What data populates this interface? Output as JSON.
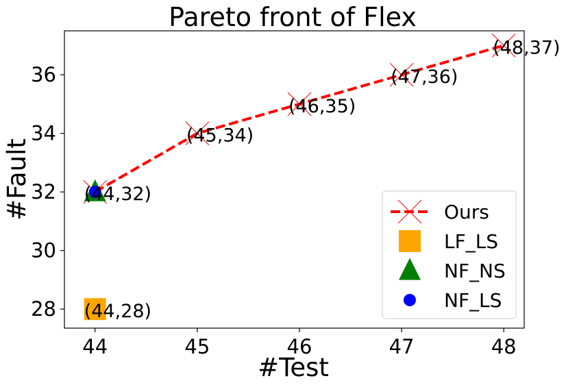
{
  "chart_data": {
    "type": "scatter",
    "title": "Pareto front of Flex",
    "xlabel": "#Test",
    "ylabel": "#Fault",
    "xlim": [
      43.7,
      48.2
    ],
    "ylim": [
      27.35,
      37.5
    ],
    "xticks": [
      44,
      45,
      46,
      47,
      48
    ],
    "yticks": [
      28,
      30,
      32,
      34,
      36
    ],
    "grid": false,
    "legend_position": "lower-right",
    "series": [
      {
        "name": "Ours",
        "marker": "x",
        "line": "dashed",
        "color": "#ff0000",
        "x": [
          44,
          45,
          46,
          47,
          48
        ],
        "y": [
          32,
          34,
          35,
          36,
          37
        ]
      },
      {
        "name": "LF_LS",
        "marker": "square",
        "color": "#ffa500",
        "x": [
          44
        ],
        "y": [
          28
        ]
      },
      {
        "name": "NF_NS",
        "marker": "triangle",
        "color": "#008000",
        "x": [
          44
        ],
        "y": [
          32
        ]
      },
      {
        "name": "NF_LS",
        "marker": "circle",
        "color": "#0000ff",
        "x": [
          44
        ],
        "y": [
          32
        ]
      }
    ],
    "annotations": [
      {
        "text": "(44,32)",
        "x": 44,
        "y": 32
      },
      {
        "text": "(45,34)",
        "x": 45,
        "y": 34
      },
      {
        "text": "(46,35)",
        "x": 46,
        "y": 35
      },
      {
        "text": "(47,36)",
        "x": 47,
        "y": 36
      },
      {
        "text": "(48,37)",
        "x": 48,
        "y": 37
      },
      {
        "text": "(44,28)",
        "x": 44,
        "y": 28
      }
    ]
  }
}
